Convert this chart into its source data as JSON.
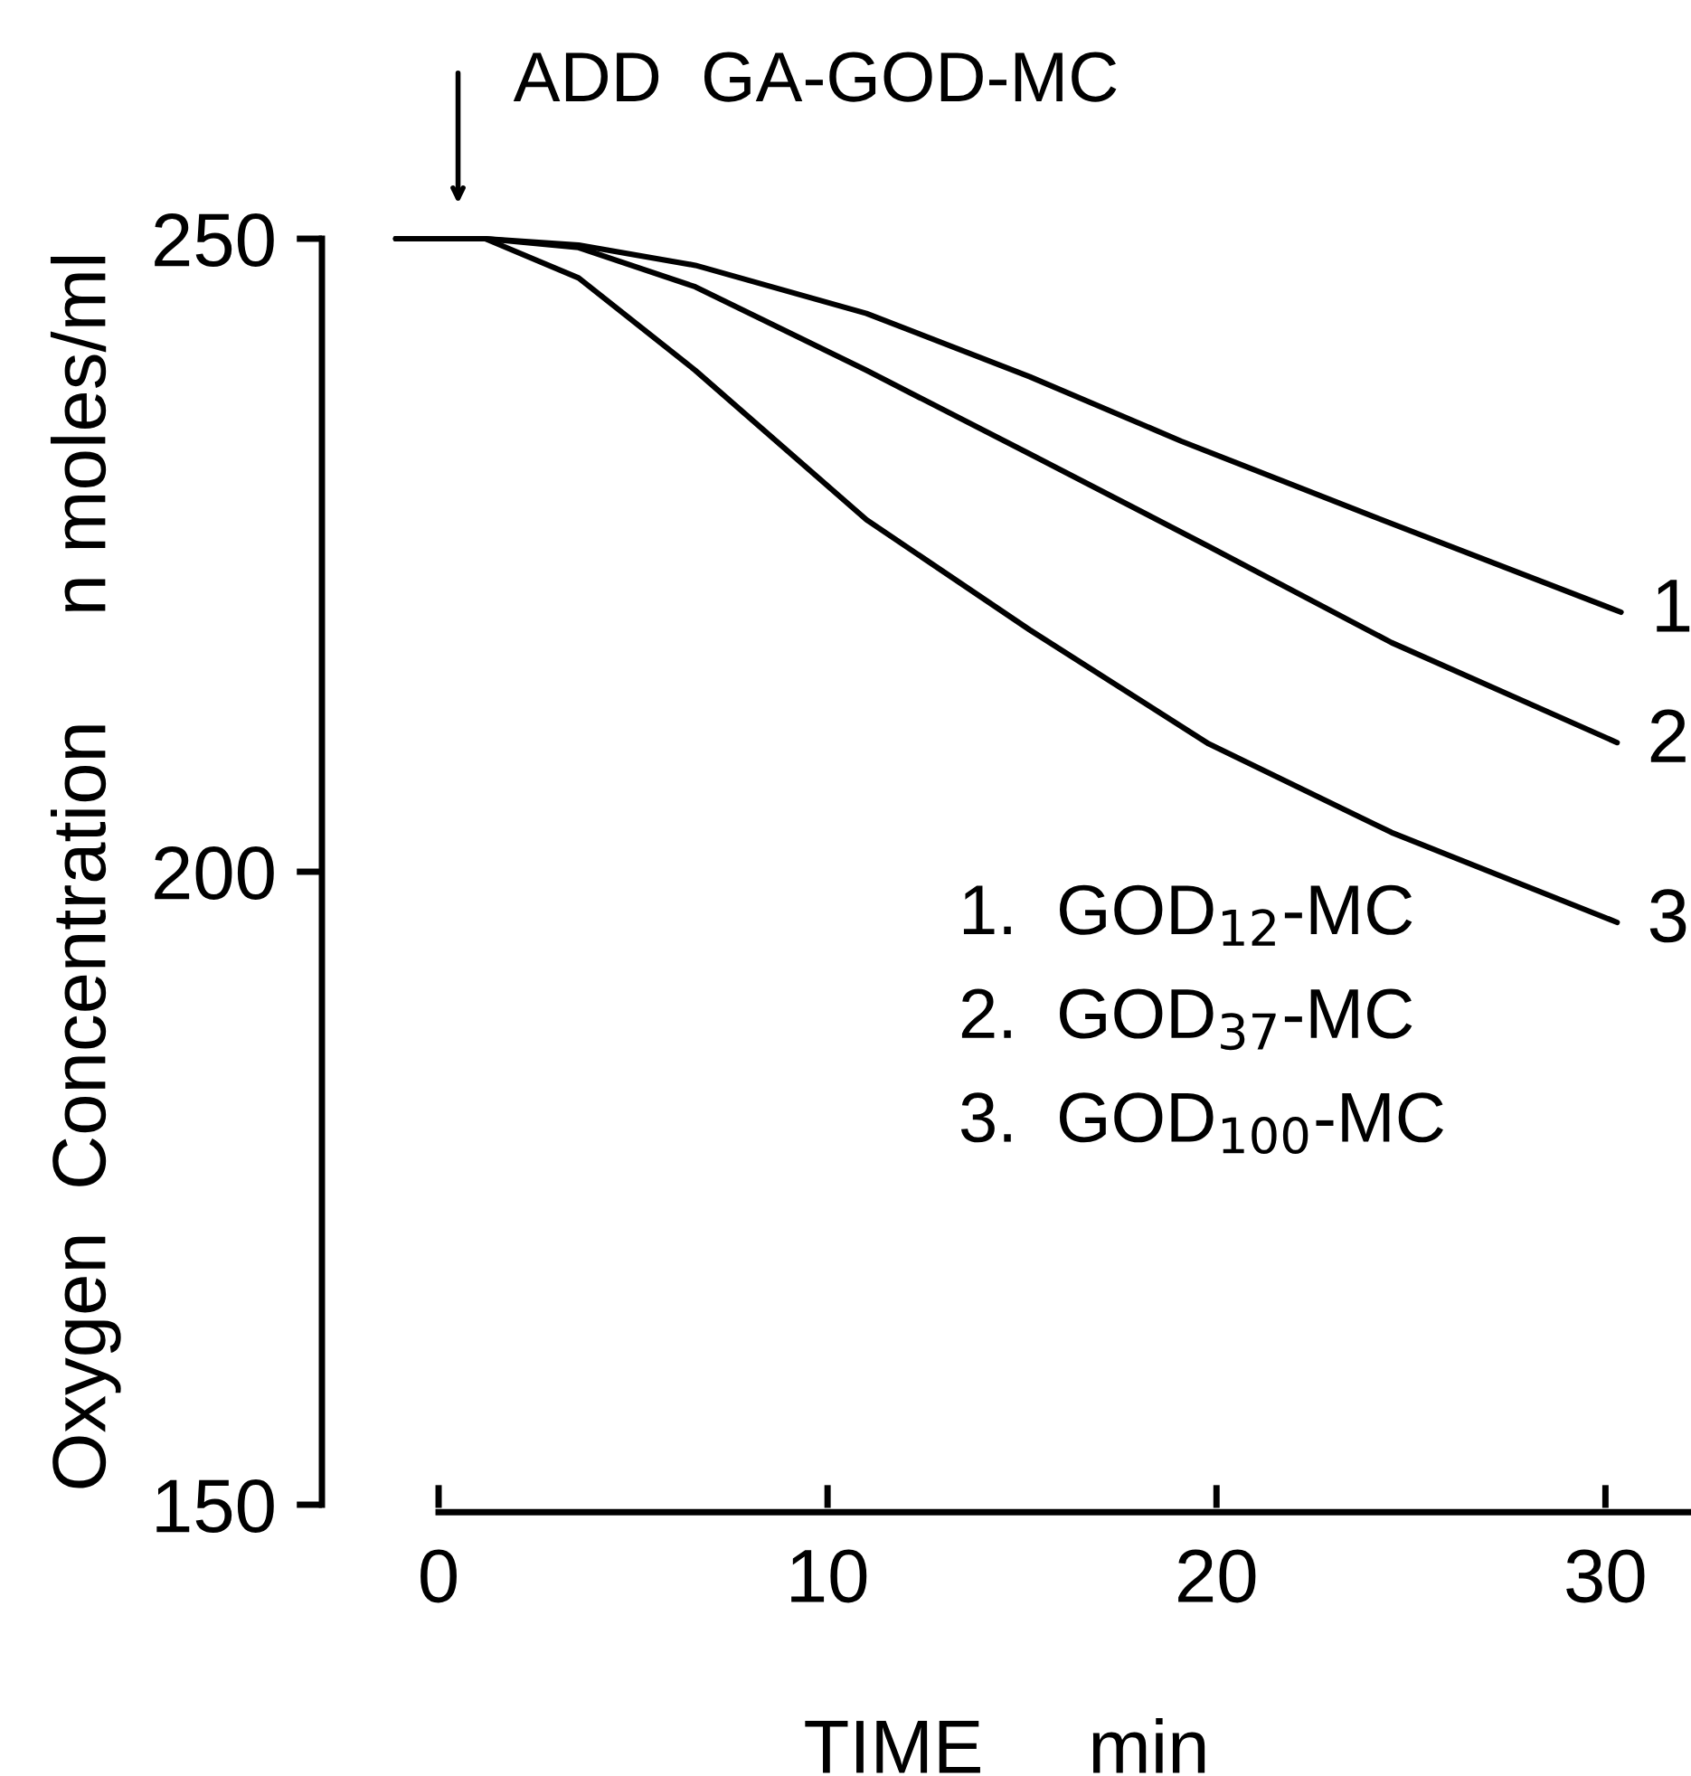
{
  "chart_data": {
    "type": "line",
    "xlabel": "TIME     min",
    "ylabel": "Oxygen  Concentration     n moles/ml",
    "xlim": [
      -3,
      32.2
    ],
    "ylim": [
      150,
      250
    ],
    "xticks": [
      0,
      10,
      20,
      30
    ],
    "yticks": [
      150,
      200,
      250
    ],
    "grid": false,
    "legend": false,
    "marker": "none",
    "line_style": "solid",
    "annotations": [
      {
        "text": "ADD  GA-GOD-MC",
        "x": 0.5,
        "y": 250
      },
      "1.  GOD$_{12}$-MC",
      "2.  GOD$_{37}$-MC",
      "3.  GOD$_{100}$-MC"
    ],
    "series": [
      {
        "name": "1",
        "color": "#000000",
        "x": [
          -1.1,
          1.2,
          3.6,
          6.6,
          11.0,
          15.2,
          19.1,
          24.0,
          30.4
        ],
        "values": [
          250,
          250,
          249.5,
          247.9,
          244.1,
          239.1,
          234.0,
          228.1,
          220.5
        ]
      },
      {
        "name": "2",
        "color": "#000000",
        "x": [
          -1.1,
          1.2,
          3.6,
          6.6,
          11.0,
          15.2,
          19.8,
          24.5,
          30.3
        ],
        "values": [
          250,
          250,
          249.3,
          246.2,
          239.6,
          233.0,
          225.7,
          218.1,
          210.2
        ]
      },
      {
        "name": "3",
        "color": "#000000",
        "x": [
          -1.1,
          1.2,
          3.6,
          6.6,
          11.0,
          15.2,
          19.8,
          24.5,
          30.3
        ],
        "values": [
          250,
          250,
          246.9,
          239.6,
          227.8,
          219.1,
          210.1,
          203.1,
          196.0
        ]
      }
    ]
  }
}
